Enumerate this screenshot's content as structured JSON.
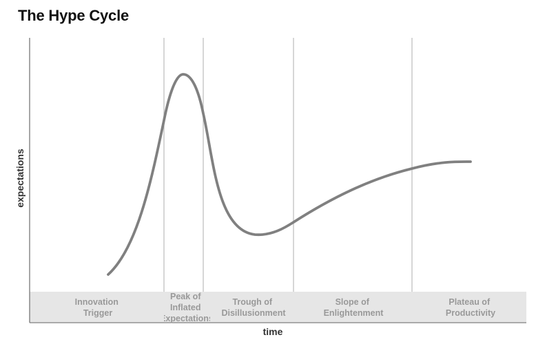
{
  "title": "The Hype Cycle",
  "axes": {
    "x_label": "time",
    "y_label": "expectations"
  },
  "phases": [
    {
      "lines": [
        "Innovation",
        "Trigger"
      ]
    },
    {
      "lines": [
        "Peak of",
        "Inflated",
        "Expectations"
      ]
    },
    {
      "lines": [
        "Trough of",
        "Disillusionment"
      ]
    },
    {
      "lines": [
        "Slope of",
        "Enlightenment"
      ]
    },
    {
      "lines": [
        "Plateau of",
        "Productivity"
      ]
    }
  ],
  "colors": {
    "curve": "#808080",
    "divider": "#bbbbbb",
    "axis": "#777777",
    "band": "#e6e6e6",
    "phase_text": "#999999",
    "title_text": "#111111"
  }
}
